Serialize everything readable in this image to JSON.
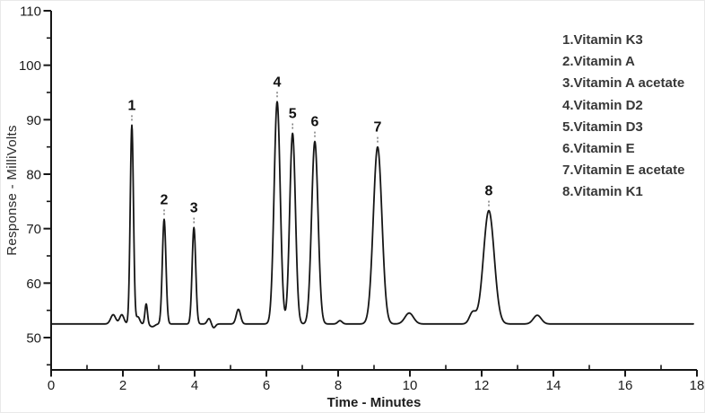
{
  "chart_data": {
    "type": "line",
    "subtype": "hplc-chromatogram",
    "title": "",
    "xlabel": "Time - Minutes",
    "ylabel": "Response - MilliVolts",
    "xlim": [
      0,
      18
    ],
    "ylim": [
      44,
      110
    ],
    "x_major_ticks": [
      0,
      2,
      4,
      6,
      8,
      10,
      12,
      14,
      16,
      18
    ],
    "x_minor_ticks": [
      1,
      3,
      5,
      7,
      9,
      11,
      13,
      15,
      17
    ],
    "y_major_ticks": [
      50,
      60,
      70,
      80,
      90,
      100,
      110
    ],
    "y_minor_ticks": [
      45,
      55,
      65,
      75,
      85,
      95,
      105
    ],
    "grid": false,
    "legend_position": "top-right",
    "line_color": "#161616",
    "baseline_mv": 52.5,
    "peaks": [
      {
        "label": "1",
        "compound": "Vitamin K3",
        "time_min": 2.25,
        "apex_mv": 89.0,
        "sigma_min": 0.045
      },
      {
        "label": "2",
        "compound": "Vitamin A",
        "time_min": 3.15,
        "apex_mv": 71.7,
        "sigma_min": 0.05
      },
      {
        "label": "3",
        "compound": "Vitamin A acetate",
        "time_min": 3.98,
        "apex_mv": 70.2,
        "sigma_min": 0.05
      },
      {
        "label": "4",
        "compound": "Vitamin D2",
        "time_min": 6.3,
        "apex_mv": 93.3,
        "sigma_min": 0.085
      },
      {
        "label": "5",
        "compound": "Vitamin D3",
        "time_min": 6.73,
        "apex_mv": 87.5,
        "sigma_min": 0.08
      },
      {
        "label": "6",
        "compound": "Vitamin E",
        "time_min": 7.35,
        "apex_mv": 86.0,
        "sigma_min": 0.09
      },
      {
        "label": "7",
        "compound": "Vitamin E acetate",
        "time_min": 9.1,
        "apex_mv": 85.0,
        "sigma_min": 0.12
      },
      {
        "label": "8",
        "compound": "Vitamin K1",
        "time_min": 12.2,
        "apex_mv": 73.3,
        "sigma_min": 0.15
      }
    ],
    "minor_features": [
      {
        "time_min": 1.73,
        "delta_mv": 1.7,
        "sigma_min": 0.07
      },
      {
        "time_min": 1.97,
        "delta_mv": 1.7,
        "sigma_min": 0.06
      },
      {
        "time_min": 2.42,
        "delta_mv": 1.3,
        "sigma_min": 0.05
      },
      {
        "time_min": 2.65,
        "delta_mv": 3.7,
        "sigma_min": 0.035
      },
      {
        "time_min": 2.82,
        "delta_mv": -0.5,
        "sigma_min": 0.07
      },
      {
        "time_min": 4.4,
        "delta_mv": 1.0,
        "sigma_min": 0.05
      },
      {
        "time_min": 4.53,
        "delta_mv": -0.7,
        "sigma_min": 0.05
      },
      {
        "time_min": 5.22,
        "delta_mv": 2.7,
        "sigma_min": 0.06
      },
      {
        "time_min": 8.05,
        "delta_mv": 0.6,
        "sigma_min": 0.06
      },
      {
        "time_min": 9.98,
        "delta_mv": 2.0,
        "sigma_min": 0.12
      },
      {
        "time_min": 11.75,
        "delta_mv": 2.1,
        "sigma_min": 0.09
      },
      {
        "time_min": 13.55,
        "delta_mv": 1.6,
        "sigma_min": 0.11
      }
    ],
    "legend": [
      "1.Vitamin K3",
      "2.Vitamin A",
      "3.Vitamin A acetate",
      "4.Vitamin D2",
      "5.Vitamin D3",
      "6.Vitamin E",
      "7.Vitamin E acetate",
      "8.Vitamin K1"
    ]
  },
  "colors": {
    "background": "#ffffff",
    "axis": "#161616",
    "tick_label": "#1c1c1c",
    "legend_text": "#383838"
  }
}
